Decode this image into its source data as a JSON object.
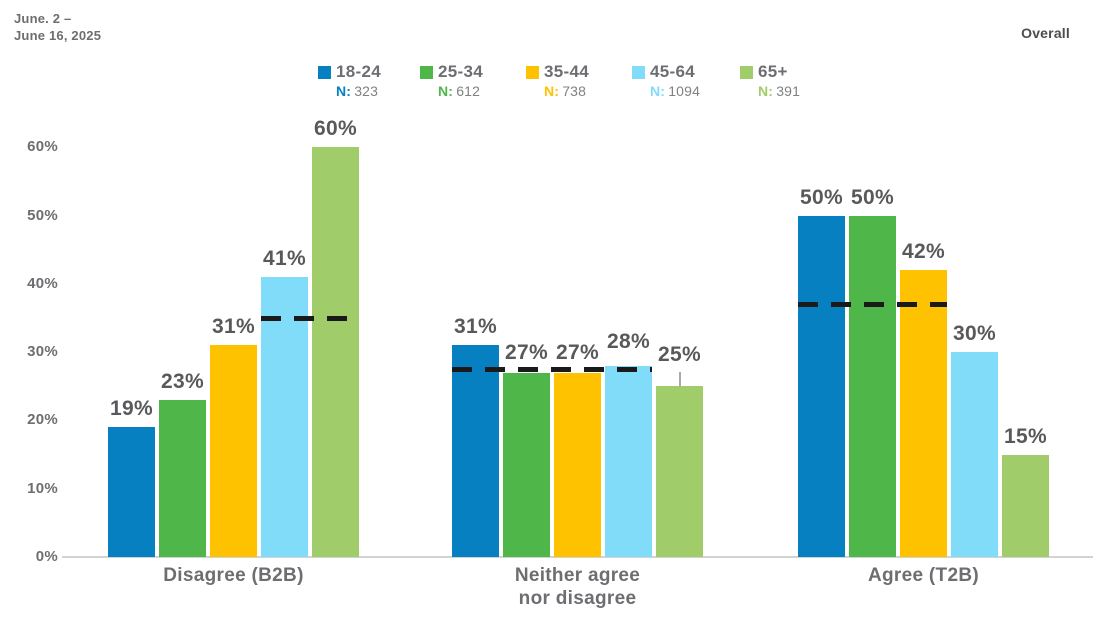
{
  "header": {
    "date_line1": "June. 2 –",
    "date_line2": "June 16, 2025",
    "overall_label": "Overall"
  },
  "legend": {
    "items": [
      {
        "label": "18-24",
        "n_label": "N:",
        "n_value": "323",
        "color": "#0680c0"
      },
      {
        "label": "25-34",
        "n_label": "N:",
        "n_value": "612",
        "color": "#4fb74a"
      },
      {
        "label": "35-44",
        "n_label": "N:",
        "n_value": "738",
        "color": "#fec200"
      },
      {
        "label": "45-64",
        "n_label": "N:",
        "n_value": "1094",
        "color": "#81dcfa"
      },
      {
        "label": "65+",
        "n_label": "N:",
        "n_value": "391",
        "color": "#a0cd69"
      }
    ]
  },
  "chart_data": {
    "type": "bar",
    "title": "",
    "grid": false,
    "legend_position": "top",
    "ylim": [
      0,
      60
    ],
    "yticks": [
      0,
      10,
      20,
      30,
      40,
      50,
      60
    ],
    "ytick_suffix": "%",
    "series_names": [
      "18-24",
      "25-34",
      "35-44",
      "45-64",
      "65+"
    ],
    "bar_colors": [
      "#0680c0",
      "#4fb74a",
      "#fec200",
      "#81dcfa",
      "#a0cd69"
    ],
    "categories": [
      "Disagree (B2B)",
      "Neither agree nor disagree",
      "Agree (T2B)"
    ],
    "groups": [
      {
        "label_lines": [
          "Disagree (B2B)"
        ],
        "values": [
          19,
          23,
          31,
          41,
          60
        ],
        "value_labels": [
          "19%",
          "23%",
          "31%",
          "41%",
          "60%"
        ],
        "label_offsets": [
          0,
          0,
          0,
          0,
          0
        ],
        "overall_dash": {
          "value": 35,
          "from_bar": 3,
          "to_bar": 4
        }
      },
      {
        "label_lines": [
          "Neither agree",
          "nor disagree"
        ],
        "values": [
          31,
          27,
          27,
          28,
          25
        ],
        "value_labels": [
          "31%",
          "27%",
          "27%",
          "28%",
          "25%"
        ],
        "label_offsets": [
          0,
          2,
          2,
          6,
          13
        ],
        "leader_bar": 4,
        "overall_dash": {
          "value": 27.5,
          "from_bar": 0,
          "to_bar": 3
        }
      },
      {
        "label_lines": [
          "Agree (T2B)"
        ],
        "values": [
          50,
          50,
          42,
          30,
          15
        ],
        "value_labels": [
          "50%",
          "50%",
          "42%",
          "30%",
          "15%"
        ],
        "label_offsets": [
          0,
          0,
          0,
          0,
          0
        ],
        "overall_dash": {
          "value": 37,
          "from_bar": 0,
          "to_bar": 2
        }
      }
    ],
    "colors": {
      "axis_line": "#d1d3d4",
      "dash_line": "#1a1a1a",
      "value_label_text": "#58595b",
      "tick_text": "#6d6e71",
      "group_label_text": "#6d6e71",
      "leader_line": "#a7a9ac"
    }
  }
}
